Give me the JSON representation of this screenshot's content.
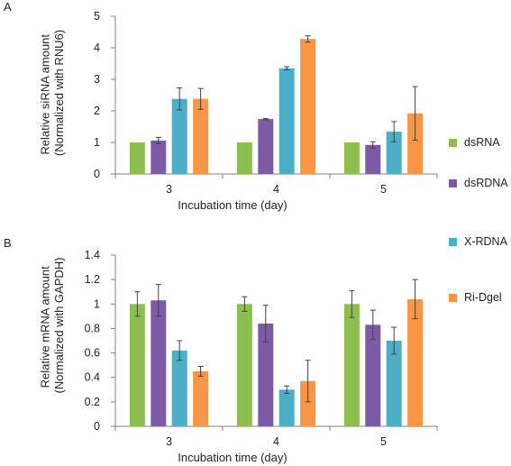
{
  "colors": {
    "dsRNA": "#8cbf4e",
    "dsRDNA": "#7c5aa6",
    "X-RDNA": "#4bafc8",
    "Ri-Dgel": "#f79646"
  },
  "legend": [
    {
      "label": "dsRNA",
      "color": "#8cbf4e"
    },
    {
      "label": "dsRDNA",
      "color": "#7c5aa6"
    },
    {
      "label": "X-RDNA",
      "color": "#4bafc8"
    },
    {
      "label": "Ri-Dgel",
      "color": "#f79646"
    }
  ],
  "chart_data": [
    {
      "type": "bar",
      "panel": "A",
      "ylabel": "Relative siRNA amount\n(Normalized with RNU6)",
      "xlabel": "Incubation time (day)",
      "categories": [
        "3",
        "4",
        "5"
      ],
      "ylim": [
        0,
        5
      ],
      "yticks": [
        0,
        1,
        2,
        3,
        4,
        5
      ],
      "yticklabels": [
        "0",
        "1",
        "2",
        "3",
        "4",
        "5"
      ],
      "grid": false,
      "legend_position": "right",
      "series": [
        {
          "name": "dsRNA",
          "values": [
            1.0,
            1.0,
            1.0
          ],
          "errors": [
            0.0,
            0.0,
            0.0
          ]
        },
        {
          "name": "dsRDNA",
          "values": [
            1.06,
            1.74,
            0.92
          ],
          "errors": [
            0.1,
            0.02,
            0.1
          ]
        },
        {
          "name": "X-RDNA",
          "values": [
            2.38,
            3.35,
            1.34
          ],
          "errors": [
            0.35,
            0.05,
            0.32
          ]
        },
        {
          "name": "Ri-Dgel",
          "values": [
            2.38,
            4.28,
            1.92
          ],
          "errors": [
            0.33,
            0.1,
            0.85
          ]
        }
      ]
    },
    {
      "type": "bar",
      "panel": "B",
      "ylabel": "Relative mRNA amount\n(Normalized with GAPDH)",
      "xlabel": "Incubation time (day)",
      "categories": [
        "3",
        "4",
        "5"
      ],
      "ylim": [
        0,
        1.4
      ],
      "yticks": [
        0,
        0.2,
        0.4,
        0.6,
        0.8,
        1,
        1.2,
        1.4
      ],
      "yticklabels": [
        "0",
        "0.2",
        "0.4",
        "0.6",
        "0.8",
        "1",
        "1.2",
        "1.4"
      ],
      "grid": false,
      "legend_position": "right",
      "series": [
        {
          "name": "dsRNA",
          "values": [
            1.0,
            1.0,
            1.0
          ],
          "errors": [
            0.1,
            0.06,
            0.11
          ]
        },
        {
          "name": "dsRDNA",
          "values": [
            1.03,
            0.84,
            0.83
          ],
          "errors": [
            0.13,
            0.15,
            0.12
          ]
        },
        {
          "name": "X-RDNA",
          "values": [
            0.62,
            0.3,
            0.7
          ],
          "errors": [
            0.08,
            0.03,
            0.11
          ]
        },
        {
          "name": "Ri-Dgel",
          "values": [
            0.45,
            0.37,
            1.04
          ],
          "errors": [
            0.04,
            0.17,
            0.16
          ]
        }
      ]
    }
  ]
}
